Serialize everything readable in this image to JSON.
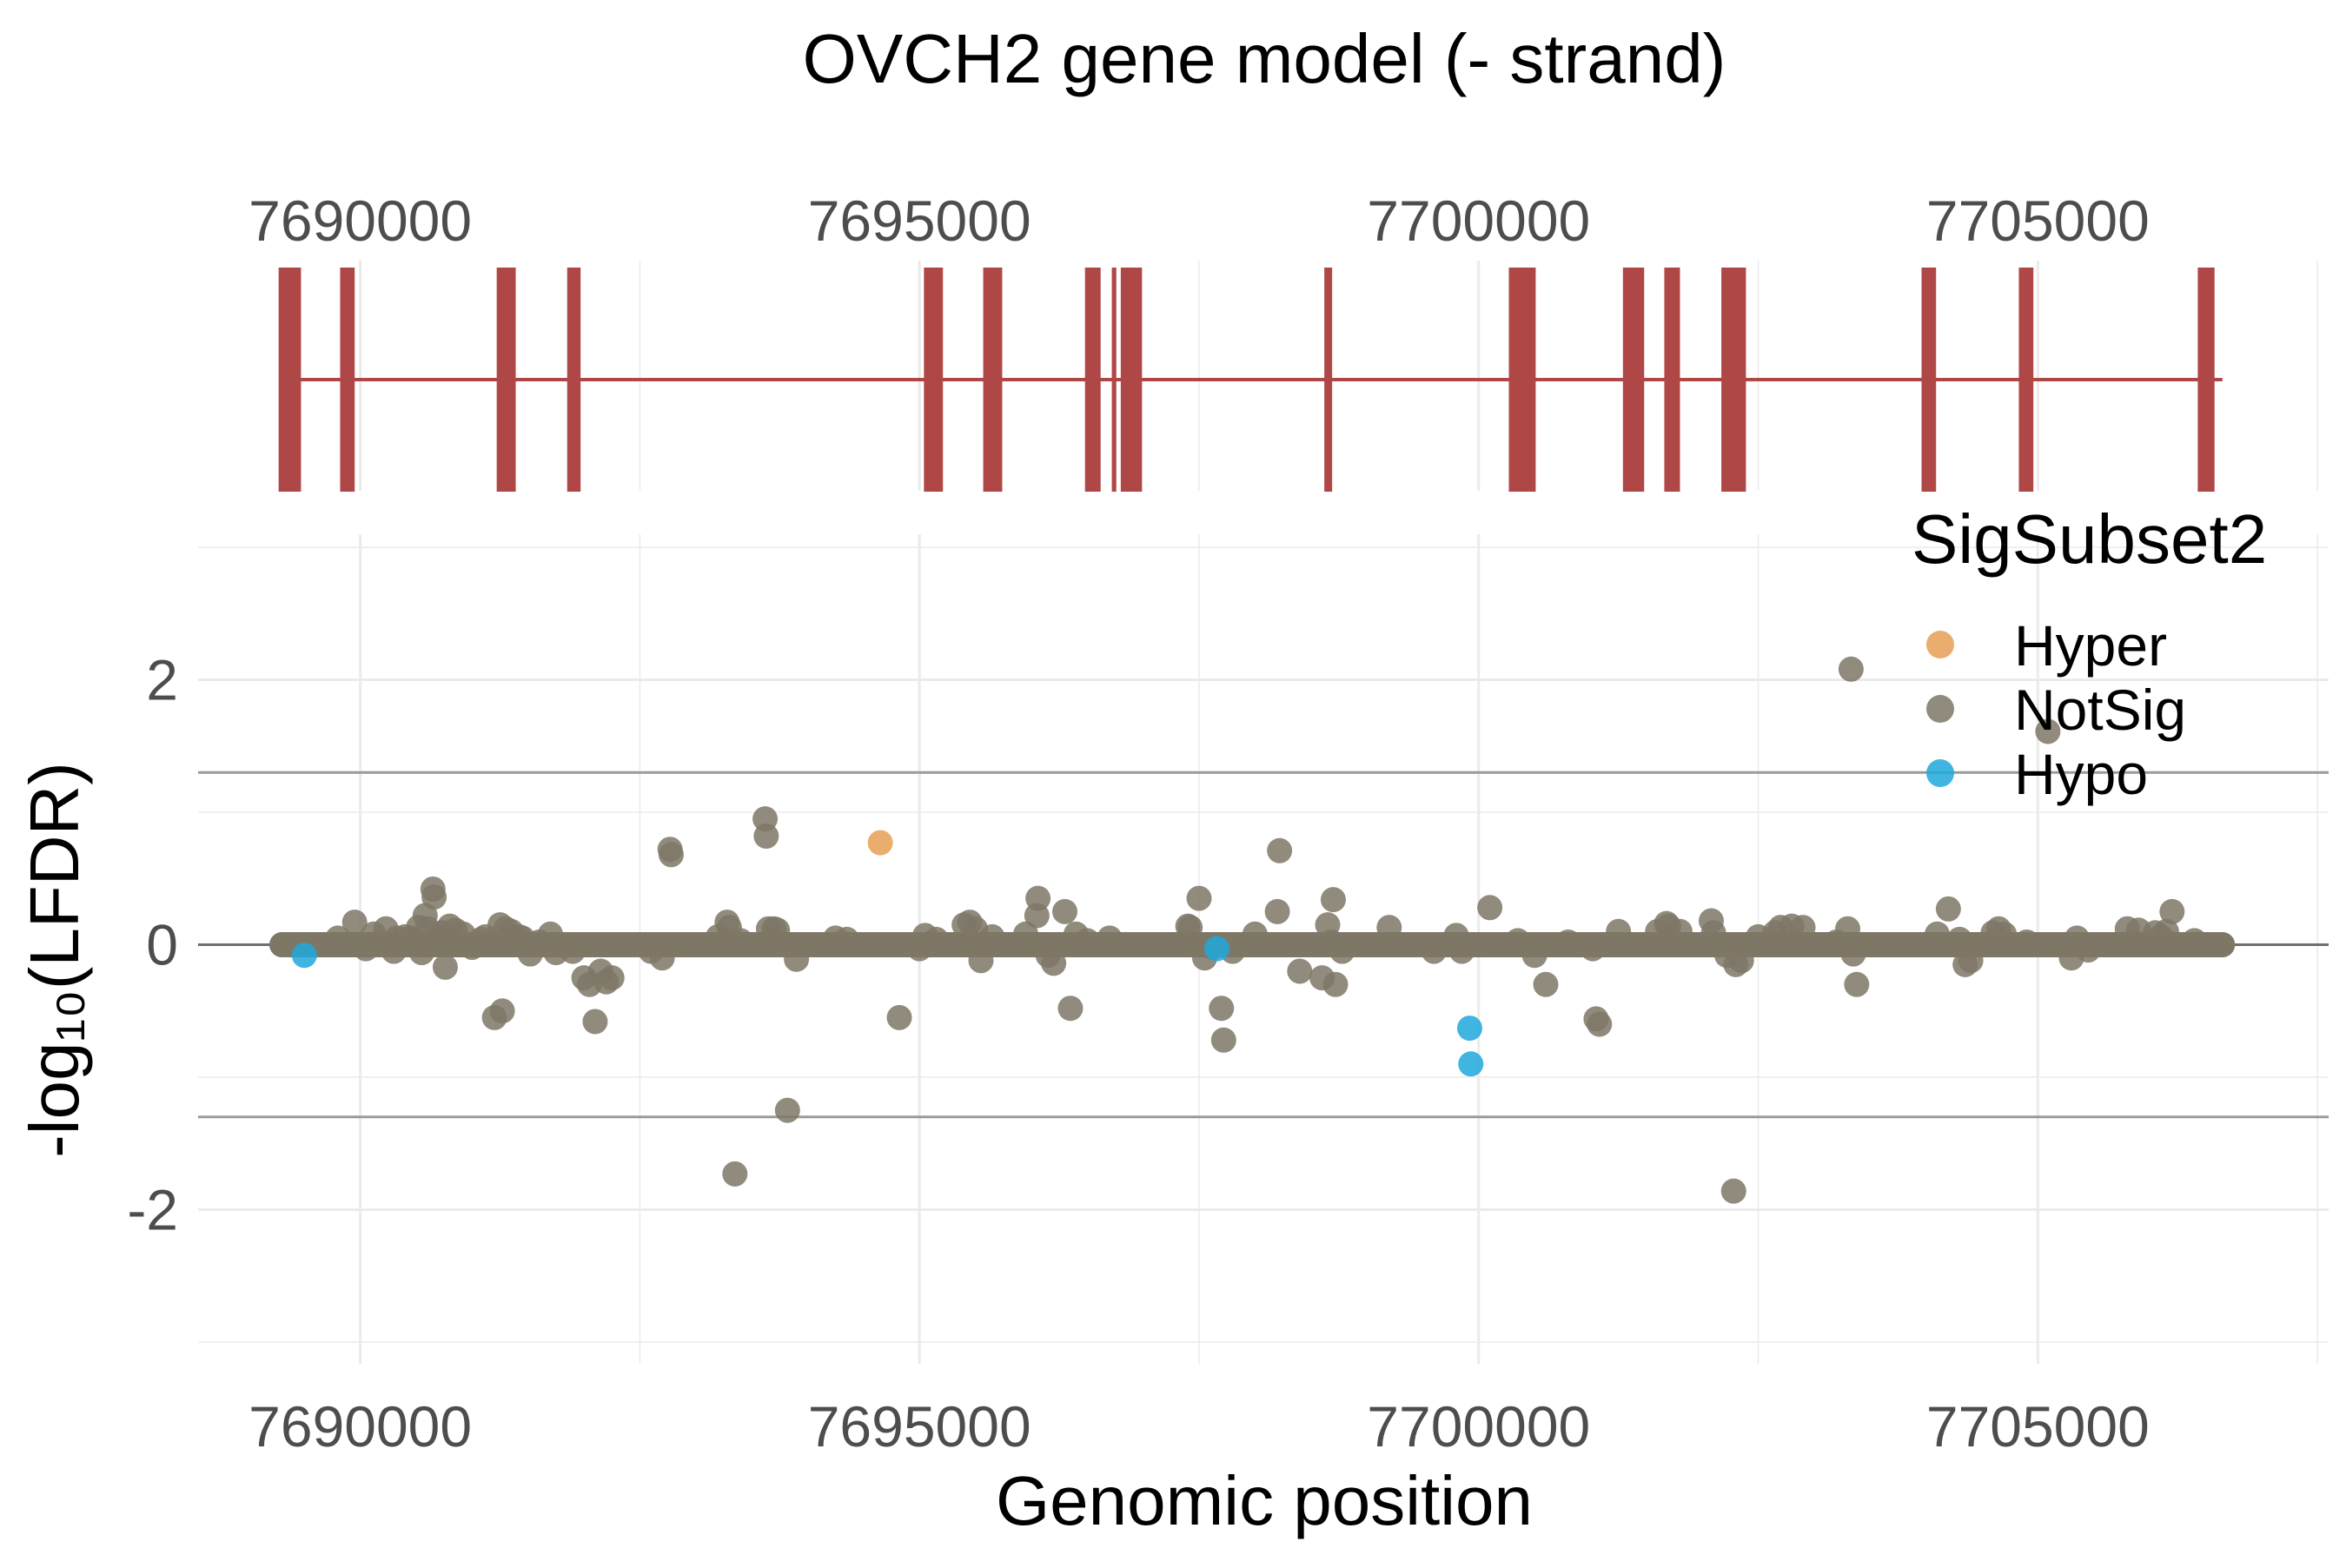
{
  "chart_data": [
    {
      "type": "gene-model",
      "title": "OVCH2 gene model (- strand)",
      "x_ticks": [
        "7690000",
        "7695000",
        "7700000",
        "7705000"
      ],
      "x_tick_values": [
        7690000,
        7695000,
        7700000,
        7705000
      ],
      "xlim": [
        7688550,
        7707600
      ],
      "gene_start": 7689400,
      "gene_end": 7706650,
      "colors": {
        "exon": "#b04747",
        "intron": "#b04747"
      },
      "exons": [
        {
          "start": 7689270,
          "end": 7689470
        },
        {
          "start": 7689820,
          "end": 7689950
        },
        {
          "start": 7691220,
          "end": 7691390
        },
        {
          "start": 7691850,
          "end": 7691970
        },
        {
          "start": 7695040,
          "end": 7695210
        },
        {
          "start": 7695570,
          "end": 7695740
        },
        {
          "start": 7696480,
          "end": 7696620
        },
        {
          "start": 7696720,
          "end": 7696760
        },
        {
          "start": 7696800,
          "end": 7696990
        },
        {
          "start": 7698620,
          "end": 7698690
        },
        {
          "start": 7700270,
          "end": 7700510
        },
        {
          "start": 7701290,
          "end": 7701480
        },
        {
          "start": 7701660,
          "end": 7701800
        },
        {
          "start": 7702170,
          "end": 7702390
        },
        {
          "start": 7703960,
          "end": 7704090
        },
        {
          "start": 7704830,
          "end": 7704960
        },
        {
          "start": 7706430,
          "end": 7706580
        }
      ]
    },
    {
      "type": "scatter",
      "xlabel": "Genomic position",
      "ylabel": "-log₁₀(LFDR)",
      "x_ticks": [
        "7690000",
        "7695000",
        "7700000",
        "7705000"
      ],
      "x_tick_values": [
        7690000,
        7695000,
        7700000,
        7705000
      ],
      "y_ticks": [
        "-2",
        "0",
        "2"
      ],
      "y_tick_values": [
        -2,
        0,
        2
      ],
      "xlim": [
        7688550,
        7707600
      ],
      "ylim": [
        -3,
        3
      ],
      "hlines": [
        1.3,
        -1.3
      ],
      "zero_line": 0,
      "grid": true,
      "legend": {
        "title": "SigSubset2",
        "position": "top-right",
        "entries": [
          {
            "label": "Hyper",
            "color": "#E69F55"
          },
          {
            "label": "NotSig",
            "color": "#7E7766"
          },
          {
            "label": "Hypo",
            "color": "#20A8DC"
          }
        ]
      },
      "baseline": {
        "x_start": 7689300,
        "x_end": 7706650,
        "y": 0,
        "color": "#7E7766"
      },
      "series": [
        {
          "name": "NotSig",
          "color": "#7E7766",
          "points": [
            [
              7689300,
              0.0
            ],
            [
              7689800,
              0.05
            ],
            [
              7689950,
              0.17
            ],
            [
              7690050,
              -0.03
            ],
            [
              7690120,
              0.08
            ],
            [
              7690230,
              0.12
            ],
            [
              7690300,
              -0.05
            ],
            [
              7690330,
              0.05
            ],
            [
              7690400,
              0.06
            ],
            [
              7690450,
              0.05
            ],
            [
              7690520,
              0.13
            ],
            [
              7690550,
              -0.06
            ],
            [
              7690580,
              0.22
            ],
            [
              7690600,
              0.12
            ],
            [
              7690650,
              0.42
            ],
            [
              7690660,
              0.36
            ],
            [
              7690700,
              0.05
            ],
            [
              7690730,
              0.09
            ],
            [
              7690760,
              -0.17
            ],
            [
              7690800,
              0.14
            ],
            [
              7690850,
              0.11
            ],
            [
              7690920,
              0.08
            ],
            [
              7691000,
              -0.02
            ],
            [
              7691080,
              0.04
            ],
            [
              7691120,
              0.06
            ],
            [
              7691200,
              -0.55
            ],
            [
              7691250,
              0.15
            ],
            [
              7691270,
              -0.5
            ],
            [
              7691300,
              0.12
            ],
            [
              7691350,
              0.1
            ],
            [
              7691420,
              0.06
            ],
            [
              7691450,
              0.05
            ],
            [
              7691520,
              -0.07
            ],
            [
              7691600,
              0.02
            ],
            [
              7691700,
              0.08
            ],
            [
              7691750,
              -0.06
            ],
            [
              7691900,
              -0.05
            ],
            [
              7692000,
              -0.25
            ],
            [
              7692050,
              -0.3
            ],
            [
              7692100,
              -0.58
            ],
            [
              7692150,
              -0.2
            ],
            [
              7692200,
              -0.28
            ],
            [
              7692250,
              -0.25
            ],
            [
              7692600,
              -0.05
            ],
            [
              7692700,
              -0.1
            ],
            [
              7692770,
              0.72
            ],
            [
              7692780,
              0.68
            ],
            [
              7693200,
              0.06
            ],
            [
              7693280,
              0.17
            ],
            [
              7693300,
              0.13
            ],
            [
              7693350,
              -1.73
            ],
            [
              7693400,
              0.03
            ],
            [
              7693620,
              0.95
            ],
            [
              7693630,
              0.82
            ],
            [
              7693650,
              0.12
            ],
            [
              7693700,
              0.12
            ],
            [
              7693730,
              0.11
            ],
            [
              7693820,
              -1.25
            ],
            [
              7693900,
              -0.11
            ],
            [
              7694250,
              0.05
            ],
            [
              7694350,
              0.04
            ],
            [
              7694820,
              -0.55
            ],
            [
              7695000,
              -0.03
            ],
            [
              7695050,
              0.07
            ],
            [
              7695150,
              0.04
            ],
            [
              7695400,
              0.15
            ],
            [
              7695450,
              0.17
            ],
            [
              7695500,
              0.12
            ],
            [
              7695550,
              -0.12
            ],
            [
              7695650,
              0.06
            ],
            [
              7695950,
              0.08
            ],
            [
              7696050,
              0.22
            ],
            [
              7696060,
              0.35
            ],
            [
              7696150,
              -0.08
            ],
            [
              7696200,
              -0.14
            ],
            [
              7696300,
              0.25
            ],
            [
              7696350,
              -0.48
            ],
            [
              7696400,
              0.08
            ],
            [
              7696500,
              0.03
            ],
            [
              7696700,
              0.05
            ],
            [
              7697400,
              0.14
            ],
            [
              7697420,
              0.13
            ],
            [
              7697500,
              0.35
            ],
            [
              7697550,
              -0.1
            ],
            [
              7697620,
              -0.02
            ],
            [
              7697700,
              -0.48
            ],
            [
              7697720,
              -0.72
            ],
            [
              7697800,
              -0.05
            ],
            [
              7698000,
              0.08
            ],
            [
              7698200,
              0.25
            ],
            [
              7698220,
              0.71
            ],
            [
              7698400,
              -0.2
            ],
            [
              7698600,
              -0.25
            ],
            [
              7698650,
              0.15
            ],
            [
              7698680,
              0.02
            ],
            [
              7698700,
              0.34
            ],
            [
              7698720,
              -0.3
            ],
            [
              7698780,
              -0.05
            ],
            [
              7699200,
              0.13
            ],
            [
              7699600,
              -0.05
            ],
            [
              7699800,
              0.07
            ],
            [
              7699850,
              -0.05
            ],
            [
              7700100,
              0.28
            ],
            [
              7700350,
              0.03
            ],
            [
              7700500,
              -0.08
            ],
            [
              7700600,
              -0.3
            ],
            [
              7700800,
              0.02
            ],
            [
              7701020,
              -0.03
            ],
            [
              7701050,
              -0.56
            ],
            [
              7701080,
              -0.6
            ],
            [
              7701250,
              0.1
            ],
            [
              7701600,
              0.1
            ],
            [
              7701680,
              0.16
            ],
            [
              7701700,
              0.14
            ],
            [
              7701800,
              0.1
            ],
            [
              7702080,
              0.18
            ],
            [
              7702100,
              0.09
            ],
            [
              7702220,
              -0.08
            ],
            [
              7702280,
              -1.86
            ],
            [
              7702300,
              -0.15
            ],
            [
              7702350,
              -0.12
            ],
            [
              7702500,
              0.06
            ],
            [
              7702650,
              0.09
            ],
            [
              7702700,
              0.13
            ],
            [
              7702800,
              0.14
            ],
            [
              7702900,
              0.13
            ],
            [
              7703200,
              0.02
            ],
            [
              7703300,
              0.12
            ],
            [
              7703330,
              2.08
            ],
            [
              7703350,
              -0.07
            ],
            [
              7703380,
              -0.3
            ],
            [
              7704100,
              0.08
            ],
            [
              7704200,
              0.27
            ],
            [
              7704300,
              0.04
            ],
            [
              7704350,
              -0.15
            ],
            [
              7704400,
              -0.12
            ],
            [
              7704600,
              0.09
            ],
            [
              7704650,
              0.12
            ],
            [
              7704700,
              0.08
            ],
            [
              7704900,
              0.02
            ],
            [
              7705300,
              -0.1
            ],
            [
              7705350,
              0.05
            ],
            [
              7705450,
              -0.04
            ],
            [
              7705800,
              0.12
            ],
            [
              7705900,
              0.11
            ],
            [
              7706050,
              0.09
            ],
            [
              7706100,
              0.06
            ],
            [
              7706150,
              0.1
            ],
            [
              7706200,
              0.25
            ],
            [
              7706400,
              0.03
            ],
            [
              7705090,
              1.61
            ],
            [
              7706650,
              0.0
            ]
          ]
        },
        {
          "name": "Hyper",
          "color": "#E69F55",
          "points": [
            [
              7694650,
              0.77
            ]
          ]
        },
        {
          "name": "Hypo",
          "color": "#20A8DC",
          "points": [
            [
              7689500,
              -0.08
            ],
            [
              7699920,
              -0.63
            ],
            [
              7699930,
              -0.9
            ],
            [
              7697660,
              -0.03
            ]
          ]
        }
      ]
    }
  ]
}
